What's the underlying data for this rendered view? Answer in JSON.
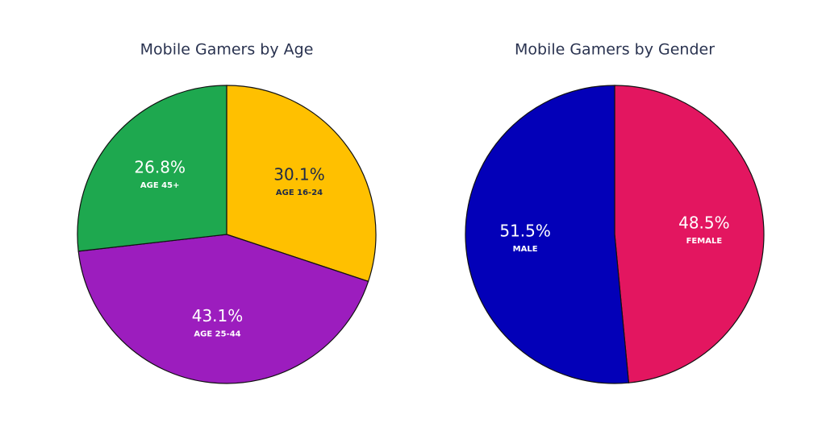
{
  "chart_data": [
    {
      "type": "pie",
      "title": "Mobile Gamers by Age",
      "categories": [
        "AGE 16-24",
        "AGE 25-44",
        "AGE 45+"
      ],
      "values": [
        30.1,
        43.1,
        26.8
      ],
      "value_labels": [
        "30.1%",
        "43.1%",
        "26.8%"
      ],
      "colors": [
        "#ffc000",
        "#9c1dbe",
        "#1ea84f"
      ]
    },
    {
      "type": "pie",
      "title": "Mobile Gamers by Gender",
      "categories": [
        "FEMALE",
        "MALE"
      ],
      "values": [
        48.5,
        51.5
      ],
      "value_labels": [
        "48.5%",
        "51.5%"
      ],
      "colors": [
        "#e31660",
        "#0300b8"
      ]
    }
  ]
}
